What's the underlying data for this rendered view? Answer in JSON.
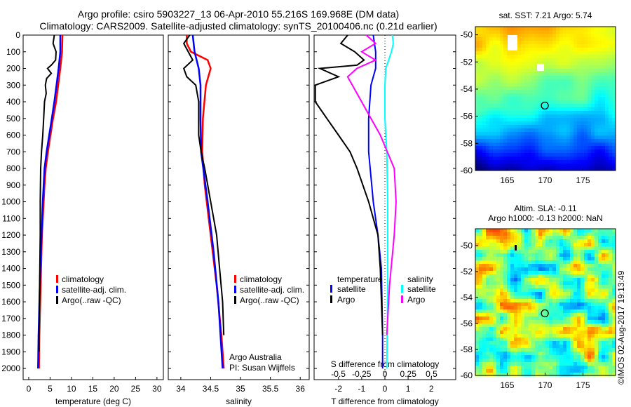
{
  "title": {
    "line1": "Argo profile: csiro 5903227_13 06-Apr-2010 55.216S 169.968E (DM data)",
    "line2": "Climatology: CARS2009. Satellite-adjusted climatology: synTS_20100406.nc (0.21d earlier)"
  },
  "chart_data": [
    {
      "type": "line",
      "id": "temp",
      "xlabel": "temperature (deg C)",
      "ylabel": "",
      "xlim": [
        -1.3,
        31.5
      ],
      "ylim": [
        2067,
        0
      ],
      "xticks": [
        0,
        5,
        10,
        15,
        20,
        25,
        30
      ],
      "yticks": [
        0,
        100,
        200,
        300,
        400,
        500,
        600,
        700,
        800,
        900,
        1000,
        1100,
        1200,
        1300,
        1400,
        1500,
        1600,
        1700,
        1800,
        1900,
        2000
      ],
      "legend": [
        "climatology",
        "satellite-adj. clim.",
        "Argo(..raw -QC)"
      ],
      "legend_position": "bottom-center",
      "series": [
        {
          "name": "climatology",
          "color": "#ff0000",
          "depth": [
            0,
            100,
            200,
            300,
            400,
            500,
            600,
            700,
            800,
            900,
            1000,
            1200,
            1400,
            1600,
            1800,
            2000
          ],
          "values": [
            7.9,
            7.8,
            7.4,
            6.9,
            6.4,
            5.7,
            5.1,
            4.5,
            4.0,
            3.7,
            3.5,
            3.1,
            2.9,
            2.7,
            2.5,
            2.4
          ]
        },
        {
          "name": "satellite-adj. clim.",
          "color": "#0000ff",
          "depth": [
            0,
            100,
            200,
            300,
            400,
            500,
            600,
            700,
            800,
            1000,
            1200,
            1400,
            1600,
            1800,
            2000
          ],
          "values": [
            7.4,
            7.4,
            7.0,
            6.5,
            6.0,
            5.4,
            4.8,
            4.2,
            3.7,
            3.3,
            3.0,
            2.7,
            2.5,
            2.3,
            2.2
          ]
        },
        {
          "name": "Argo(..raw -QC)",
          "color": "#000000",
          "depth": [
            0,
            50,
            100,
            150,
            180,
            200,
            230,
            260,
            300,
            350,
            400,
            500,
            600,
            700,
            800,
            1000,
            1200,
            1400,
            1600,
            1800,
            1900
          ],
          "values": [
            6.0,
            5.7,
            6.4,
            6.3,
            5.3,
            4.4,
            5.3,
            4.2,
            3.9,
            4.1,
            3.7,
            3.5,
            3.3,
            3.0,
            2.8,
            2.7,
            2.7,
            2.6,
            2.5,
            2.4,
            2.4
          ]
        }
      ]
    },
    {
      "type": "line",
      "id": "sal",
      "xlabel": "salinity",
      "xlim": [
        33.79,
        36.15
      ],
      "ylim": [
        2067,
        0
      ],
      "xticks": [
        34,
        34.5,
        35,
        35.5,
        36
      ],
      "legend": [
        "climatology",
        "satellite-adj. clim.",
        "Argo(..raw -QC)"
      ],
      "annotation": [
        "Argo Australia",
        "PI: Susan Wijffels"
      ],
      "series": [
        {
          "name": "climatology",
          "color": "#ff0000",
          "depth": [
            0,
            50,
            100,
            150,
            200,
            300,
            500,
            700,
            900,
            1200,
            1500,
            1800,
            2000
          ],
          "values": [
            34.1,
            34.1,
            34.17,
            34.45,
            34.5,
            34.42,
            34.37,
            34.36,
            34.4,
            34.5,
            34.6,
            34.68,
            34.72
          ]
        },
        {
          "name": "satellite-adj. clim.",
          "color": "#0000ff",
          "depth": [
            0,
            100,
            200,
            300,
            500,
            700,
            1000,
            1300,
            1600,
            2000
          ],
          "values": [
            34.2,
            34.23,
            34.3,
            34.33,
            34.33,
            34.34,
            34.45,
            34.55,
            34.63,
            34.7
          ]
        },
        {
          "name": "Argo(..raw -QC)",
          "color": "#000000",
          "depth": [
            0,
            50,
            150,
            200,
            250,
            300,
            400,
            600,
            700,
            800,
            1000,
            1200,
            1400,
            1600,
            1800
          ],
          "values": [
            34.15,
            34.05,
            34.2,
            34.05,
            34.1,
            34.25,
            34.3,
            34.3,
            34.34,
            34.4,
            34.5,
            34.6,
            34.65,
            34.7,
            34.72
          ]
        }
      ]
    },
    {
      "type": "line",
      "id": "diff",
      "xlabel": "T difference from climatology",
      "xlabel2": "S difference from climatology",
      "xlim": [
        -3.05,
        3.05
      ],
      "xlim2": [
        -0.76,
        0.76
      ],
      "ylim": [
        2067,
        0
      ],
      "xticks": [
        -2,
        -1,
        0,
        1,
        2
      ],
      "xticks2": [
        "-0.5",
        "-0.25",
        "0",
        "0.25",
        "0.5"
      ],
      "legend_temperature": {
        "title": "temperature",
        "items": [
          "satellite",
          "Argo"
        ]
      },
      "legend_salinity": {
        "title": "salinity",
        "items": [
          "satellite",
          "Argo"
        ]
      },
      "series": [
        {
          "name": "temperature satellite",
          "axis": "T",
          "color": "#0000ff",
          "depth": [
            0,
            100,
            200,
            300,
            500,
            700,
            1000,
            1200,
            1400,
            1800,
            2000
          ],
          "values": [
            -0.5,
            -0.4,
            -0.4,
            -0.6,
            -0.7,
            -0.7,
            -0.5,
            -0.3,
            -0.15,
            -0.1,
            -0.1
          ]
        },
        {
          "name": "temperature Argo",
          "axis": "T",
          "color": "#000000",
          "depth": [
            0,
            50,
            100,
            150,
            180,
            200,
            250,
            300,
            400,
            500,
            600,
            700,
            800,
            1000,
            1200,
            1400,
            1800
          ],
          "values": [
            -1.6,
            -1.9,
            -1.3,
            -0.9,
            -1.2,
            -2.8,
            -2.0,
            -3.0,
            -3.0,
            -2.5,
            -2.0,
            -1.5,
            -1.2,
            -0.7,
            -0.3,
            -0.2,
            -0.1
          ]
        },
        {
          "name": "salinity satellite",
          "axis": "S",
          "color": "#00ffff",
          "depth": [
            0,
            50,
            100,
            200,
            300,
            500,
            700,
            1000,
            1500,
            2000
          ],
          "values": [
            0.08,
            0.09,
            0.07,
            0.01,
            0.0,
            0.0,
            0.02,
            0.03,
            0.03,
            0.02
          ]
        },
        {
          "name": "salinity Argo",
          "axis": "S",
          "color": "#ff00ff",
          "depth": [
            0,
            50,
            100,
            150,
            200,
            250,
            300,
            400,
            500,
            600,
            800,
            1000,
            1200,
            1500,
            1800
          ],
          "values": [
            -0.2,
            -0.1,
            -0.25,
            -0.1,
            -0.3,
            -0.4,
            -0.35,
            -0.25,
            -0.15,
            -0.05,
            0.1,
            0.12,
            0.1,
            0.05,
            0.02
          ]
        }
      ]
    },
    {
      "type": "heatmap",
      "id": "sst",
      "title": "sat. SST: 7.21 Argo: 5.74",
      "xticks": [
        165,
        170,
        175
      ],
      "yticks": [
        -50,
        -52,
        -54,
        -56,
        -58,
        -60
      ],
      "xlim": [
        160.8,
        179.3
      ],
      "ylim": [
        -60,
        -49.4
      ],
      "marker": {
        "lon": 169.968,
        "lat": -55.216
      }
    },
    {
      "type": "heatmap",
      "id": "sla",
      "title": "Altim. SLA: -0.11",
      "subtitle": "Argo h1000: -0.13 h2000: NaN",
      "xticks": [
        165,
        170,
        175
      ],
      "yticks": [
        -50,
        -52,
        -54,
        -56,
        -58,
        -60
      ],
      "xlim": [
        160.8,
        179.3
      ],
      "ylim": [
        -60,
        -48.7
      ],
      "marker": {
        "lon": 169.968,
        "lat": -55.216
      }
    }
  ],
  "footer": "©IMOS 02-Aug-2017 19:13:49"
}
